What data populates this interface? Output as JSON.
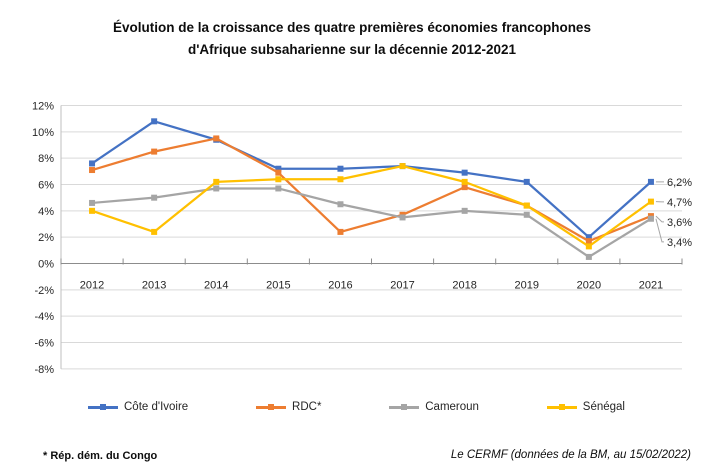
{
  "title": {
    "line1": "Évolution de la croissance des quatre premières économies francophones",
    "line2": "d'Afrique subsaharienne sur la décennie 2012-2021"
  },
  "chart_data": {
    "type": "line",
    "categories": [
      "2012",
      "2013",
      "2014",
      "2015",
      "2016",
      "2017",
      "2018",
      "2019",
      "2020",
      "2021"
    ],
    "series": [
      {
        "name": "Côte d'Ivoire",
        "color": "#4472C4",
        "values": [
          7.6,
          10.8,
          9.4,
          7.2,
          7.2,
          7.4,
          6.9,
          6.2,
          2.0,
          6.2
        ],
        "end_label": "6,2%"
      },
      {
        "name": "RDC*",
        "color": "#ED7D31",
        "values": [
          7.1,
          8.5,
          9.5,
          6.9,
          2.4,
          3.7,
          5.8,
          4.4,
          1.7,
          3.6
        ],
        "end_label": "3,6%"
      },
      {
        "name": "Cameroun",
        "color": "#A5A5A5",
        "values": [
          4.6,
          5.0,
          5.7,
          5.7,
          4.5,
          3.5,
          4.0,
          3.7,
          0.5,
          3.4
        ],
        "end_label": "3,4%"
      },
      {
        "name": "Sénégal",
        "color": "#FFC000",
        "values": [
          4.0,
          2.4,
          6.2,
          6.4,
          6.4,
          7.4,
          6.2,
          4.4,
          1.3,
          4.7
        ],
        "end_label": "4,7%"
      }
    ],
    "ylim": [
      -8,
      12
    ],
    "ytick_step": 2,
    "ytick_suffix": "%",
    "grid": true,
    "legend_position": "bottom",
    "grid_color": "#d9d9d9",
    "axis_color": "#8c8c8c",
    "leader_color": "#a6a6a6",
    "label_color": "#262626"
  },
  "footnote": "* Rép. dém. du Congo",
  "source": "Le CERMF (données de la BM, au 15/02/2022)"
}
